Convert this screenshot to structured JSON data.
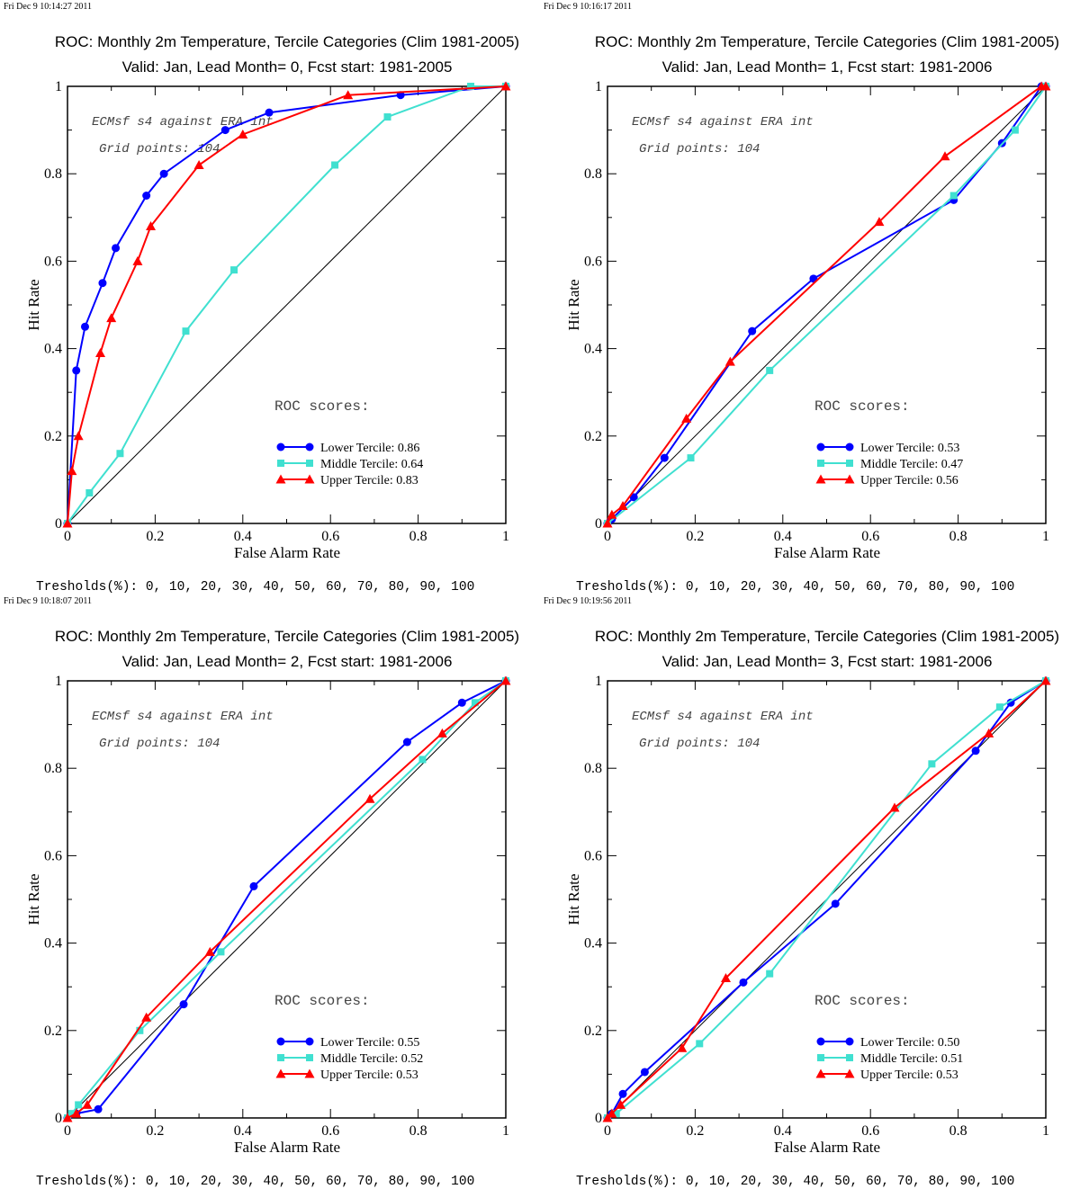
{
  "charts": [
    {
      "timestamp": "Fri Dec  9 10:14:27 2011",
      "title": "ROC: Monthly 2m Temperature, Tercile Categories (Clim 1981-2005)",
      "subtitle": "Valid: Jan, Lead Month= 0, Fcst start: 1981-2005",
      "annotation_1": "ECMsf s4 against ERA int",
      "annotation_2": "Grid points:  104",
      "scores_label": "ROC scores:",
      "thresholds": "Tresholds(%): 0, 10, 20, 30, 40, 50, 60, 70, 80, 90, 100"
    },
    {
      "timestamp": "Fri Dec  9 10:16:17 2011",
      "title": "ROC: Monthly 2m Temperature, Tercile Categories (Clim 1981-2005)",
      "subtitle": "Valid: Jan, Lead Month= 1, Fcst start: 1981-2006",
      "annotation_1": "ECMsf s4 against ERA int",
      "annotation_2": "Grid points:  104",
      "scores_label": "ROC scores:",
      "thresholds": "Tresholds(%): 0, 10, 20, 30, 40, 50, 60, 70, 80, 90, 100"
    },
    {
      "timestamp": "Fri Dec  9 10:18:07 2011",
      "title": "ROC: Monthly 2m Temperature, Tercile Categories (Clim 1981-2005)",
      "subtitle": "Valid: Jan, Lead Month= 2, Fcst start: 1981-2006",
      "annotation_1": "ECMsf s4 against ERA int",
      "annotation_2": "Grid points:  104",
      "scores_label": "ROC scores:",
      "thresholds": "Tresholds(%): 0, 10, 20, 30, 40, 50, 60, 70, 80, 90, 100"
    },
    {
      "timestamp": "Fri Dec  9 10:19:56 2011",
      "title": "ROC: Monthly 2m Temperature, Tercile Categories (Clim 1981-2005)",
      "subtitle": "Valid: Jan, Lead Month= 3, Fcst start: 1981-2006",
      "annotation_1": "ECMsf s4 against ERA int",
      "annotation_2": "Grid points:  104",
      "scores_label": "ROC scores:",
      "thresholds": "Tresholds(%): 0, 10, 20, 30, 40, 50, 60, 70, 80, 90, 100"
    }
  ],
  "chart_data": [
    {
      "type": "line",
      "xlabel": "False Alarm Rate",
      "ylabel": "Hit Rate",
      "xlim": [
        0,
        1
      ],
      "ylim": [
        0,
        1
      ],
      "xticks": [
        "0",
        "0.2",
        "0.4",
        "0.6",
        "0.8",
        "1"
      ],
      "yticks": [
        "0",
        "0.2",
        "0.4",
        "0.6",
        "0.8",
        "1"
      ],
      "legend_position": "bottom-right",
      "series": [
        {
          "name": "Lower Tercile: 0.86",
          "color": "#0000ff",
          "marker": "circle",
          "x": [
            0,
            0.02,
            0.04,
            0.08,
            0.11,
            0.18,
            0.22,
            0.36,
            0.46,
            0.76,
            1
          ],
          "y": [
            0,
            0.35,
            0.45,
            0.55,
            0.63,
            0.75,
            0.8,
            0.9,
            0.94,
            0.98,
            1
          ]
        },
        {
          "name": "Middle Tercile: 0.64",
          "color": "#40e0d0",
          "marker": "square",
          "x": [
            0,
            0.05,
            0.12,
            0.27,
            0.38,
            0.61,
            0.73,
            0.92,
            1
          ],
          "y": [
            0,
            0.07,
            0.16,
            0.44,
            0.58,
            0.82,
            0.93,
            1.0,
            1
          ]
        },
        {
          "name": "Upper Tercile: 0.83",
          "color": "#ff0000",
          "marker": "triangle",
          "x": [
            0,
            0.01,
            0.025,
            0.075,
            0.1,
            0.16,
            0.19,
            0.3,
            0.4,
            0.64,
            1
          ],
          "y": [
            0,
            0.12,
            0.2,
            0.39,
            0.47,
            0.6,
            0.68,
            0.82,
            0.89,
            0.98,
            1
          ]
        }
      ]
    },
    {
      "type": "line",
      "xlabel": "False Alarm Rate",
      "ylabel": "Hit Rate",
      "xlim": [
        0,
        1
      ],
      "ylim": [
        0,
        1
      ],
      "xticks": [
        "0",
        "0.2",
        "0.4",
        "0.6",
        "0.8",
        "1"
      ],
      "yticks": [
        "0",
        "0.2",
        "0.4",
        "0.6",
        "0.8",
        "1"
      ],
      "legend_position": "bottom-right",
      "series": [
        {
          "name": "Lower Tercile: 0.53",
          "color": "#0000ff",
          "marker": "circle",
          "x": [
            0,
            0.01,
            0.06,
            0.13,
            0.33,
            0.47,
            0.79,
            0.9,
            0.99,
            1
          ],
          "y": [
            0,
            0.01,
            0.06,
            0.15,
            0.44,
            0.56,
            0.74,
            0.87,
            1.0,
            1
          ]
        },
        {
          "name": "Middle Tercile: 0.47",
          "color": "#40e0d0",
          "marker": "square",
          "x": [
            0,
            0.19,
            0.37,
            0.79,
            0.93,
            1
          ],
          "y": [
            0,
            0.15,
            0.35,
            0.75,
            0.9,
            1
          ]
        },
        {
          "name": "Upper Tercile: 0.56",
          "color": "#ff0000",
          "marker": "triangle",
          "x": [
            0,
            0.01,
            0.035,
            0.18,
            0.28,
            0.62,
            0.77,
            0.99,
            1
          ],
          "y": [
            0,
            0.02,
            0.04,
            0.24,
            0.37,
            0.69,
            0.84,
            1.0,
            1
          ]
        }
      ]
    },
    {
      "type": "line",
      "xlabel": "False Alarm Rate",
      "ylabel": "Hit Rate",
      "xlim": [
        0,
        1
      ],
      "ylim": [
        0,
        1
      ],
      "xticks": [
        "0",
        "0.2",
        "0.4",
        "0.6",
        "0.8",
        "1"
      ],
      "yticks": [
        "0",
        "0.2",
        "0.4",
        "0.6",
        "0.8",
        "1"
      ],
      "legend_position": "bottom-right",
      "series": [
        {
          "name": "Lower Tercile: 0.55",
          "color": "#0000ff",
          "marker": "circle",
          "x": [
            0,
            0.02,
            0.07,
            0.265,
            0.425,
            0.775,
            0.9,
            1
          ],
          "y": [
            0,
            0.01,
            0.02,
            0.26,
            0.53,
            0.86,
            0.95,
            1
          ]
        },
        {
          "name": "Middle Tercile: 0.52",
          "color": "#40e0d0",
          "marker": "square",
          "x": [
            0,
            0.01,
            0.025,
            0.165,
            0.35,
            0.81,
            0.93,
            1
          ],
          "y": [
            0,
            0.01,
            0.03,
            0.2,
            0.38,
            0.82,
            0.95,
            1
          ]
        },
        {
          "name": "Upper Tercile: 0.53",
          "color": "#ff0000",
          "marker": "triangle",
          "x": [
            0,
            0.02,
            0.045,
            0.18,
            0.325,
            0.69,
            0.855,
            1
          ],
          "y": [
            0,
            0.01,
            0.03,
            0.23,
            0.38,
            0.73,
            0.88,
            1
          ]
        }
      ]
    },
    {
      "type": "line",
      "xlabel": "False Alarm Rate",
      "ylabel": "Hit Rate",
      "xlim": [
        0,
        1
      ],
      "ylim": [
        0,
        1
      ],
      "xticks": [
        "0",
        "0.2",
        "0.4",
        "0.6",
        "0.8",
        "1"
      ],
      "yticks": [
        "0",
        "0.2",
        "0.4",
        "0.6",
        "0.8",
        "1"
      ],
      "legend_position": "bottom-right",
      "series": [
        {
          "name": "Lower Tercile: 0.50",
          "color": "#0000ff",
          "marker": "circle",
          "x": [
            0,
            0.01,
            0.035,
            0.085,
            0.31,
            0.52,
            0.84,
            0.92,
            1
          ],
          "y": [
            0,
            0.01,
            0.055,
            0.105,
            0.31,
            0.49,
            0.84,
            0.95,
            1
          ]
        },
        {
          "name": "Middle Tercile: 0.51",
          "color": "#40e0d0",
          "marker": "square",
          "x": [
            0,
            0.02,
            0.21,
            0.37,
            0.74,
            0.895,
            1
          ],
          "y": [
            0,
            0.01,
            0.17,
            0.33,
            0.81,
            0.94,
            1
          ]
        },
        {
          "name": "Upper Tercile: 0.53",
          "color": "#ff0000",
          "marker": "triangle",
          "x": [
            0,
            0.01,
            0.03,
            0.17,
            0.27,
            0.655,
            0.87,
            1
          ],
          "y": [
            0,
            0.01,
            0.03,
            0.16,
            0.32,
            0.71,
            0.88,
            1
          ]
        }
      ]
    }
  ]
}
